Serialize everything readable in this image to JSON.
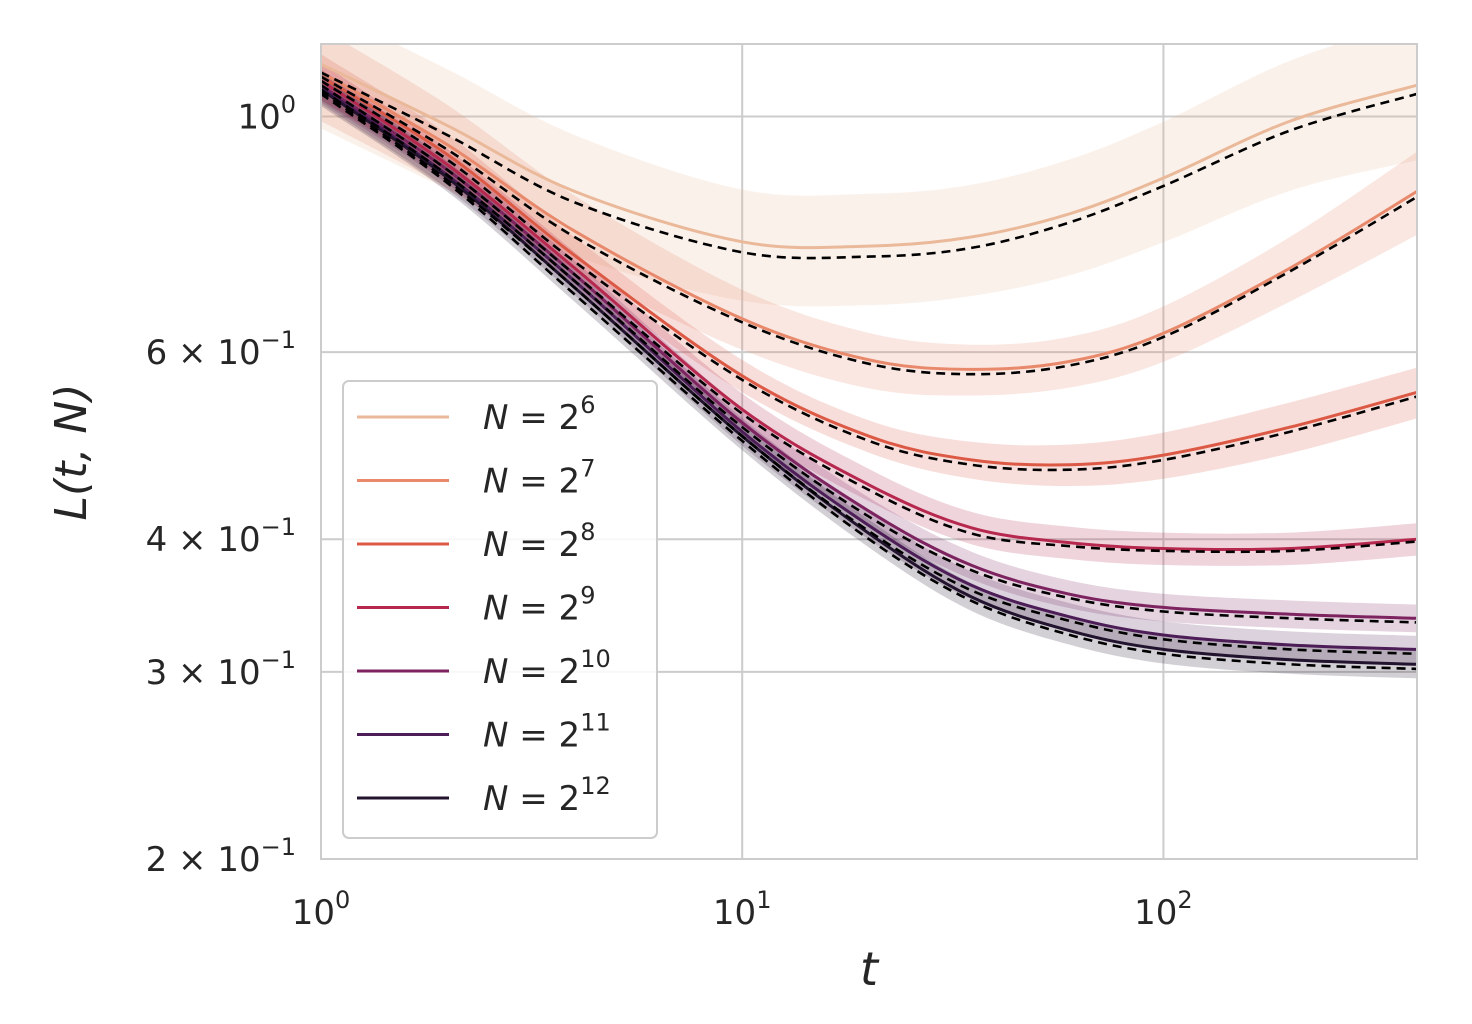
{
  "chart_data": {
    "type": "line",
    "xscale": "log",
    "yscale": "log",
    "xlim": [
      1,
      400
    ],
    "ylim": [
      0.2,
      1.17
    ],
    "xlabel": "t",
    "ylabel": "L(t, N)",
    "xticks": [
      {
        "value": 1,
        "base": "10",
        "exp": "0"
      },
      {
        "value": 10,
        "base": "10",
        "exp": "1"
      },
      {
        "value": 100,
        "base": "10",
        "exp": "2"
      }
    ],
    "yticks": [
      {
        "value": 1.0,
        "mant": "",
        "base": "10",
        "exp": "0"
      },
      {
        "value": 0.6,
        "mant": "6 × ",
        "base": "10",
        "exp": "−1"
      },
      {
        "value": 0.4,
        "mant": "4 × ",
        "base": "10",
        "exp": "−1"
      },
      {
        "value": 0.3,
        "mant": "3 × ",
        "base": "10",
        "exp": "−1"
      },
      {
        "value": 0.2,
        "mant": "2 × ",
        "base": "10",
        "exp": "−1"
      }
    ],
    "grid": true,
    "legend_position": "lower-left",
    "x": [
      1,
      2,
      4,
      10,
      20,
      35,
      60,
      100,
      200,
      400
    ],
    "series": [
      {
        "name": "N = 2^6",
        "base": "N = 2",
        "exp": "6",
        "color": "#eab99a",
        "values": [
          1.12,
          0.98,
          0.85,
          0.762,
          0.755,
          0.77,
          0.81,
          0.875,
          0.99,
          1.07
        ],
        "band": [
          0.13,
          0.13,
          0.13,
          0.12,
          0.12,
          0.12,
          0.125,
          0.13,
          0.14,
          0.15
        ],
        "fit": [
          1.1,
          0.96,
          0.83,
          0.745,
          0.738,
          0.752,
          0.795,
          0.86,
          0.97,
          1.05
        ]
      },
      {
        "name": "N = 2^7",
        "base": "N = 2",
        "exp": "7",
        "color": "#e8896b",
        "values": [
          1.1,
          0.94,
          0.78,
          0.645,
          0.59,
          0.578,
          0.588,
          0.625,
          0.72,
          0.85
        ],
        "band": [
          0.1,
          0.09,
          0.08,
          0.065,
          0.06,
          0.055,
          0.055,
          0.06,
          0.07,
          0.09
        ],
        "fit": [
          1.09,
          0.93,
          0.77,
          0.64,
          0.585,
          0.572,
          0.583,
          0.62,
          0.715,
          0.84
        ]
      },
      {
        "name": "N = 2^8",
        "base": "N = 2",
        "exp": "8",
        "color": "#dc5a45",
        "values": [
          1.09,
          0.92,
          0.74,
          0.57,
          0.5,
          0.475,
          0.47,
          0.48,
          0.51,
          0.55
        ],
        "band": [
          0.05,
          0.045,
          0.04,
          0.035,
          0.035,
          0.04,
          0.045,
          0.05,
          0.055,
          0.055
        ],
        "fit": [
          1.08,
          0.91,
          0.73,
          0.565,
          0.495,
          0.47,
          0.465,
          0.475,
          0.505,
          0.545
        ]
      },
      {
        "name": "N = 2^9",
        "base": "N = 2",
        "exp": "9",
        "color": "#b6284e",
        "values": [
          1.08,
          0.9,
          0.72,
          0.53,
          0.45,
          0.41,
          0.397,
          0.392,
          0.392,
          0.4
        ],
        "band": [
          0.04,
          0.035,
          0.035,
          0.035,
          0.035,
          0.035,
          0.035,
          0.035,
          0.035,
          0.035
        ],
        "fit": [
          1.07,
          0.89,
          0.71,
          0.525,
          0.445,
          0.405,
          0.394,
          0.39,
          0.39,
          0.398
        ]
      },
      {
        "name": "N = 2^10",
        "base": "N = 2",
        "exp": "10",
        "color": "#7d2360",
        "values": [
          1.07,
          0.89,
          0.71,
          0.515,
          0.425,
          0.378,
          0.355,
          0.345,
          0.34,
          0.337
        ],
        "band": [
          0.035,
          0.03,
          0.03,
          0.03,
          0.03,
          0.03,
          0.03,
          0.03,
          0.03,
          0.03
        ],
        "fit": [
          1.06,
          0.88,
          0.7,
          0.51,
          0.42,
          0.374,
          0.352,
          0.342,
          0.337,
          0.334
        ]
      },
      {
        "name": "N = 2^11",
        "base": "N = 2",
        "exp": "11",
        "color": "#4d1d57",
        "values": [
          1.065,
          0.88,
          0.7,
          0.505,
          0.412,
          0.362,
          0.338,
          0.325,
          0.318,
          0.315
        ],
        "band": [
          0.035,
          0.03,
          0.03,
          0.03,
          0.03,
          0.03,
          0.03,
          0.03,
          0.03,
          0.03
        ],
        "fit": [
          1.055,
          0.87,
          0.69,
          0.5,
          0.407,
          0.358,
          0.335,
          0.322,
          0.315,
          0.312
        ]
      },
      {
        "name": "N = 2^12",
        "base": "N = 2",
        "exp": "12",
        "color": "#22132e",
        "values": [
          1.06,
          0.875,
          0.69,
          0.5,
          0.405,
          0.353,
          0.328,
          0.315,
          0.308,
          0.305
        ],
        "band": [
          0.035,
          0.03,
          0.03,
          0.03,
          0.03,
          0.03,
          0.03,
          0.03,
          0.03,
          0.03
        ],
        "fit": [
          1.05,
          0.865,
          0.68,
          0.495,
          0.4,
          0.35,
          0.325,
          0.312,
          0.305,
          0.302
        ]
      }
    ],
    "fit_style": "black dashed"
  }
}
